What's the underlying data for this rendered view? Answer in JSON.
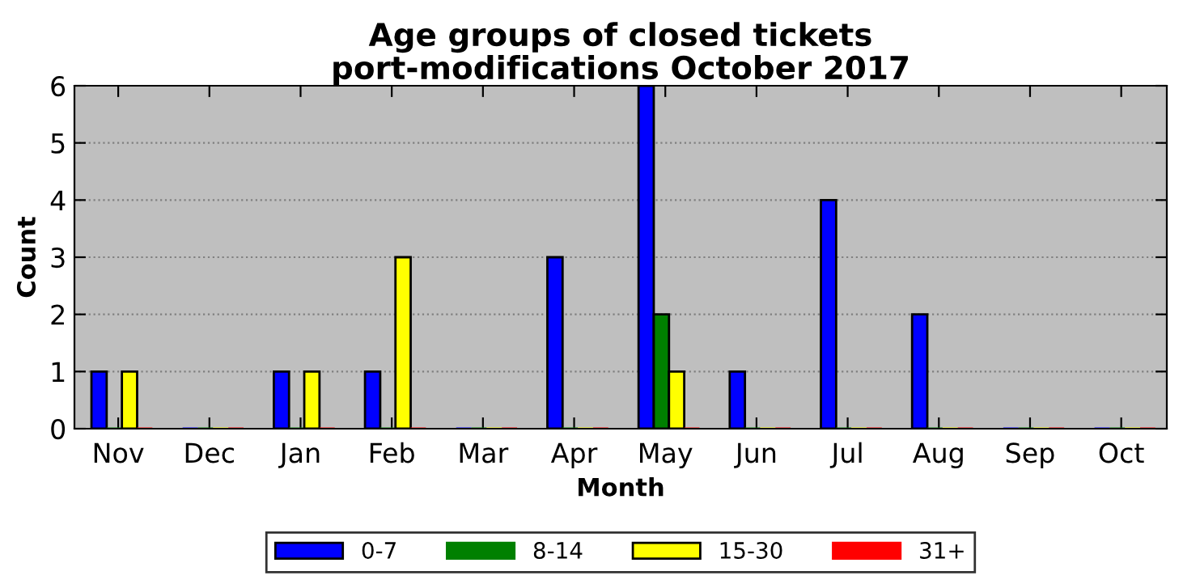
{
  "chart_data": {
    "type": "bar",
    "title": "Age groups of closed tickets\nport-modifications October 2017",
    "xlabel": "Month",
    "ylabel": "Count",
    "categories": [
      "Nov",
      "Dec",
      "Jan",
      "Feb",
      "Mar",
      "Apr",
      "May",
      "Jun",
      "Jul",
      "Aug",
      "Sep",
      "Oct"
    ],
    "series": [
      {
        "name": "0-7",
        "color": "#0000ff",
        "values": [
          1,
          0,
          1,
          1,
          0,
          3,
          6,
          1,
          4,
          2,
          0,
          0
        ]
      },
      {
        "name": "8-14",
        "color": "#008000",
        "values": [
          0,
          0,
          0,
          0,
          0,
          0,
          2,
          0,
          0,
          0,
          0,
          0
        ]
      },
      {
        "name": "15-30",
        "color": "#ffff00",
        "values": [
          1,
          0,
          1,
          3,
          0,
          0,
          1,
          0,
          0,
          0,
          0,
          0
        ]
      },
      {
        "name": "31+",
        "color": "#ff0000",
        "values": [
          0,
          0,
          0,
          0,
          0,
          0,
          0,
          0,
          0,
          0,
          0,
          0
        ]
      }
    ],
    "ylim": [
      0,
      6
    ],
    "yticks": [
      0,
      1,
      2,
      3,
      4,
      5,
      6
    ],
    "grid": "y",
    "legend": "bottom"
  }
}
